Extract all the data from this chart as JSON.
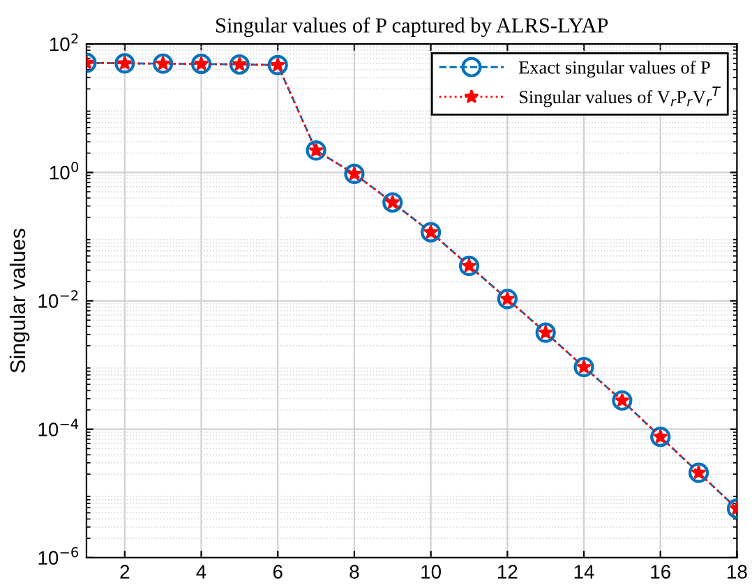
{
  "chart_data": {
    "type": "line",
    "title": "Singular values of P captured by ALRS-LYAP",
    "ylabel": "Singular values",
    "x": [
      1,
      2,
      3,
      4,
      5,
      6,
      7,
      8,
      9,
      10,
      11,
      12,
      13,
      14,
      15,
      16,
      17,
      18
    ],
    "series": [
      {
        "name": "Exact singular values of P",
        "color": "#0072bd",
        "marker": "circle",
        "line_style": "dashed",
        "values": [
          51,
          50,
          49.5,
          49,
          48,
          47,
          2.2,
          0.95,
          0.34,
          0.117,
          0.035,
          0.0107,
          0.0032,
          0.00093,
          0.00028,
          7.6e-05,
          2.1e-05,
          5.8e-06
        ]
      },
      {
        "name": "Singular values of V$_{r}$P$_{r}$V$_{r}$$^{T}$",
        "color": "#ff0000",
        "marker": "star",
        "line_style": "dotted",
        "values": [
          51,
          50,
          49.5,
          49,
          48,
          47,
          2.2,
          0.95,
          0.34,
          0.117,
          0.035,
          0.0107,
          0.0032,
          0.00093,
          0.00028,
          7.6e-05,
          2.1e-05,
          5.8e-06
        ]
      }
    ],
    "log": "y",
    "xlim": [
      1,
      18
    ],
    "xticks": [
      2,
      4,
      6,
      8,
      10,
      12,
      14,
      16,
      18
    ],
    "ylim": [
      1e-06,
      100
    ],
    "yticks": [
      {
        "value": 1e-06,
        "label": "10$^{−6}$"
      },
      {
        "value": 0.0001,
        "label": "10$^{−4}$"
      },
      {
        "value": 0.01,
        "label": "10$^{−2}$"
      },
      {
        "value": 1,
        "label": "10$^{0}$"
      },
      {
        "value": 100,
        "label": "10$^{2}$"
      }
    ],
    "grid": true,
    "legend": "top right"
  }
}
